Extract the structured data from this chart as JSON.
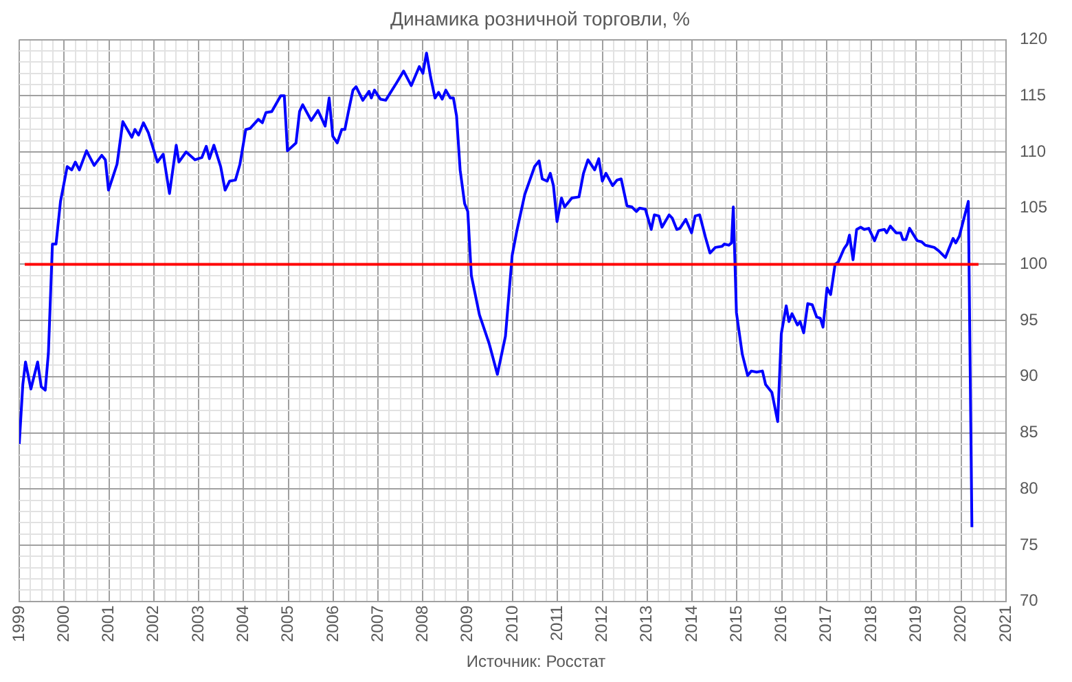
{
  "chart_data": {
    "type": "line",
    "title": "Динамика розничной торговли, %",
    "annotations": [
      "Источник: Росстат"
    ],
    "series": [
      {
        "color": "#0000ff",
        "x": [
          1999.0,
          1999.08,
          1999.14,
          1999.26,
          1999.41,
          1999.49,
          1999.58,
          1999.65,
          1999.74,
          1999.82,
          1999.92,
          2000.07,
          2000.17,
          2000.25,
          2000.34,
          2000.5,
          2000.67,
          2000.84,
          2000.92,
          2000.99,
          2001.18,
          2001.31,
          2001.51,
          2001.58,
          2001.66,
          2001.77,
          2001.88,
          2002.08,
          2002.21,
          2002.35,
          2002.5,
          2002.56,
          2002.72,
          2002.92,
          2003.07,
          2003.17,
          2003.24,
          2003.34,
          2003.49,
          2003.59,
          2003.69,
          2003.82,
          2003.92,
          2004.05,
          2004.15,
          2004.33,
          2004.42,
          2004.5,
          2004.63,
          2004.83,
          2004.91,
          2004.98,
          2005.17,
          2005.25,
          2005.32,
          2005.51,
          2005.66,
          2005.82,
          2005.91,
          2005.99,
          2006.09,
          2006.19,
          2006.26,
          2006.34,
          2006.44,
          2006.51,
          2006.66,
          2006.8,
          2006.85,
          2006.92,
          2007.05,
          2007.17,
          2007.42,
          2007.57,
          2007.74,
          2007.92,
          2008.0,
          2008.08,
          2008.17,
          2008.27,
          2008.35,
          2008.43,
          2008.51,
          2008.61,
          2008.68,
          2008.75,
          2008.83,
          2008.93,
          2009.0,
          2009.08,
          2009.26,
          2009.48,
          2009.66,
          2009.84,
          2009.99,
          2010.09,
          2010.27,
          2010.49,
          2010.59,
          2010.66,
          2010.77,
          2010.84,
          2010.91,
          2010.99,
          2011.09,
          2011.16,
          2011.32,
          2011.48,
          2011.58,
          2011.68,
          2011.83,
          2011.92,
          2012.0,
          2012.08,
          2012.23,
          2012.33,
          2012.42,
          2012.55,
          2012.66,
          2012.76,
          2012.83,
          2012.96,
          2013.09,
          2013.16,
          2013.26,
          2013.33,
          2013.49,
          2013.56,
          2013.66,
          2013.73,
          2013.86,
          2013.99,
          2014.07,
          2014.17,
          2014.3,
          2014.4,
          2014.52,
          2014.67,
          2014.72,
          2014.82,
          2014.88,
          2014.92,
          2014.99,
          2015.12,
          2015.24,
          2015.32,
          2015.44,
          2015.57,
          2015.64,
          2015.78,
          2015.91,
          2015.99,
          2016.1,
          2016.16,
          2016.23,
          2016.35,
          2016.41,
          2016.49,
          2016.58,
          2016.68,
          2016.78,
          2016.86,
          2016.92,
          2017.01,
          2017.09,
          2017.19,
          2017.26,
          2017.39,
          2017.46,
          2017.51,
          2017.59,
          2017.67,
          2017.76,
          2017.84,
          2017.94,
          2018.07,
          2018.16,
          2018.29,
          2018.34,
          2018.42,
          2018.55,
          2018.65,
          2018.7,
          2018.77,
          2018.85,
          2019.02,
          2019.12,
          2019.2,
          2019.3,
          2019.4,
          2019.5,
          2019.65,
          2019.82,
          2019.88,
          2019.96,
          2020.16,
          2020.24
        ],
        "values": [
          84.0,
          89.3,
          91.3,
          88.9,
          91.3,
          89.1,
          88.8,
          92.1,
          101.8,
          101.8,
          105.6,
          108.7,
          108.4,
          109.1,
          108.4,
          110.1,
          108.8,
          109.7,
          109.3,
          106.6,
          108.9,
          112.7,
          111.3,
          112.0,
          111.5,
          112.6,
          111.7,
          109.1,
          109.8,
          106.3,
          110.6,
          109.1,
          110.0,
          109.3,
          109.5,
          110.5,
          109.4,
          110.6,
          108.7,
          106.6,
          107.4,
          107.5,
          108.9,
          112.0,
          112.1,
          112.9,
          112.6,
          113.5,
          113.6,
          115.0,
          115.0,
          110.1,
          110.8,
          113.6,
          114.2,
          112.8,
          113.7,
          112.3,
          114.8,
          111.4,
          110.8,
          112.0,
          112.0,
          113.6,
          115.5,
          115.8,
          114.6,
          115.4,
          114.8,
          115.5,
          114.7,
          114.6,
          116.2,
          117.2,
          115.9,
          117.6,
          117.0,
          118.8,
          116.7,
          114.8,
          115.3,
          114.7,
          115.5,
          114.8,
          114.8,
          113.2,
          108.4,
          105.4,
          104.7,
          99.0,
          95.5,
          92.9,
          90.2,
          93.6,
          100.8,
          102.9,
          106.2,
          108.7,
          109.2,
          107.6,
          107.4,
          108.1,
          107.0,
          103.8,
          105.9,
          105.1,
          105.9,
          106.0,
          108.1,
          109.3,
          108.4,
          109.4,
          107.4,
          108.1,
          107.0,
          107.5,
          107.6,
          105.2,
          105.1,
          104.7,
          105.0,
          104.9,
          103.1,
          104.4,
          104.3,
          103.3,
          104.4,
          104.1,
          103.1,
          103.2,
          104.0,
          102.8,
          104.3,
          104.4,
          102.4,
          101.0,
          101.5,
          101.6,
          101.8,
          101.7,
          101.9,
          105.1,
          95.7,
          92.0,
          90.1,
          90.5,
          90.4,
          90.5,
          89.3,
          88.6,
          86.0,
          93.8,
          96.3,
          94.9,
          95.6,
          94.6,
          94.9,
          93.9,
          96.5,
          96.4,
          95.3,
          95.2,
          94.4,
          97.9,
          97.3,
          100.0,
          100.2,
          101.4,
          101.8,
          102.6,
          100.4,
          103.1,
          103.3,
          103.1,
          103.2,
          102.1,
          103.0,
          103.1,
          102.8,
          103.4,
          102.8,
          102.8,
          102.2,
          102.2,
          103.2,
          102.1,
          102.0,
          101.7,
          101.6,
          101.5,
          101.2,
          100.6,
          102.3,
          101.9,
          102.5,
          105.6,
          76.6
        ]
      }
    ],
    "xlim": [
      1999,
      2021
    ],
    "xticks": [
      1999,
      {
        "value": 1999.25,
        "label": null
      },
      {
        "value": 1999.5,
        "label": null
      },
      {
        "value": 1999.75,
        "label": null
      },
      2000,
      {
        "value": 2000.25,
        "label": null
      },
      {
        "value": 2000.5,
        "label": null
      },
      {
        "value": 2000.75,
        "label": null
      },
      2001,
      {
        "value": 2001.25,
        "label": null
      },
      {
        "value": 2001.5,
        "label": null
      },
      {
        "value": 2001.75,
        "label": null
      },
      2002,
      {
        "value": 2002.25,
        "label": null
      },
      {
        "value": 2002.5,
        "label": null
      },
      {
        "value": 2002.75,
        "label": null
      },
      2003,
      {
        "value": 2003.25,
        "label": null
      },
      {
        "value": 2003.5,
        "label": null
      },
      {
        "value": 2003.75,
        "label": null
      },
      2004,
      {
        "value": 2004.25,
        "label": null
      },
      {
        "value": 2004.5,
        "label": null
      },
      {
        "value": 2004.75,
        "label": null
      },
      2005,
      {
        "value": 2005.25,
        "label": null
      },
      {
        "value": 2005.5,
        "label": null
      },
      {
        "value": 2005.75,
        "label": null
      },
      2006,
      {
        "value": 2006.25,
        "label": null
      },
      {
        "value": 2006.5,
        "label": null
      },
      {
        "value": 2006.75,
        "label": null
      },
      2007,
      {
        "value": 2007.25,
        "label": null
      },
      {
        "value": 2007.5,
        "label": null
      },
      {
        "value": 2007.75,
        "label": null
      },
      2008,
      {
        "value": 2008.25,
        "label": null
      },
      {
        "value": 2008.5,
        "label": null
      },
      {
        "value": 2008.75,
        "label": null
      },
      2009,
      {
        "value": 2009.25,
        "label": null
      },
      {
        "value": 2009.5,
        "label": null
      },
      {
        "value": 2009.75,
        "label": null
      },
      2010,
      {
        "value": 2010.25,
        "label": null
      },
      {
        "value": 2010.5,
        "label": null
      },
      {
        "value": 2010.75,
        "label": null
      },
      2011,
      {
        "value": 2011.25,
        "label": null
      },
      {
        "value": 2011.5,
        "label": null
      },
      {
        "value": 2011.75,
        "label": null
      },
      2012,
      {
        "value": 2012.25,
        "label": null
      },
      {
        "value": 2012.5,
        "label": null
      },
      {
        "value": 2012.75,
        "label": null
      },
      2013,
      {
        "value": 2013.25,
        "label": null
      },
      {
        "value": 2013.5,
        "label": null
      },
      {
        "value": 2013.75,
        "label": null
      },
      2014,
      {
        "value": 2014.25,
        "label": null
      },
      {
        "value": 2014.5,
        "label": null
      },
      {
        "value": 2014.75,
        "label": null
      },
      2015,
      {
        "value": 2015.25,
        "label": null
      },
      {
        "value": 2015.5,
        "label": null
      },
      {
        "value": 2015.75,
        "label": null
      },
      2016,
      {
        "value": 2016.25,
        "label": null
      },
      {
        "value": 2016.5,
        "label": null
      },
      {
        "value": 2016.75,
        "label": null
      },
      2017,
      {
        "value": 2017.25,
        "label": null
      },
      {
        "value": 2017.5,
        "label": null
      },
      {
        "value": 2017.75,
        "label": null
      },
      2018,
      {
        "value": 2018.25,
        "label": null
      },
      {
        "value": 2018.5,
        "label": null
      },
      {
        "value": 2018.75,
        "label": null
      },
      2019,
      {
        "value": 2019.25,
        "label": null
      },
      {
        "value": 2019.5,
        "label": null
      },
      {
        "value": 2019.75,
        "label": null
      },
      2020,
      {
        "value": 2020.25,
        "label": null
      },
      {
        "value": 2020.5,
        "label": null
      },
      {
        "value": 2020.75,
        "label": null
      },
      2021
    ],
    "ylim": [
      70,
      120
    ],
    "yticks": [
      70,
      {
        "value": 71,
        "label": null
      },
      {
        "value": 72,
        "label": null
      },
      {
        "value": 73,
        "label": null
      },
      {
        "value": 74,
        "label": null
      },
      75,
      {
        "value": 76,
        "label": null
      },
      {
        "value": 77,
        "label": null
      },
      {
        "value": 78,
        "label": null
      },
      {
        "value": 79,
        "label": null
      },
      80,
      {
        "value": 81,
        "label": null
      },
      {
        "value": 82,
        "label": null
      },
      {
        "value": 83,
        "label": null
      },
      {
        "value": 84,
        "label": null
      },
      85,
      {
        "value": 86,
        "label": null
      },
      {
        "value": 87,
        "label": null
      },
      {
        "value": 88,
        "label": null
      },
      {
        "value": 89,
        "label": null
      },
      90,
      {
        "value": 91,
        "label": null
      },
      {
        "value": 92,
        "label": null
      },
      {
        "value": 93,
        "label": null
      },
      {
        "value": 94,
        "label": null
      },
      95,
      {
        "value": 96,
        "label": null
      },
      {
        "value": 97,
        "label": null
      },
      {
        "value": 98,
        "label": null
      },
      {
        "value": 99,
        "label": null
      },
      100,
      {
        "value": 101,
        "label": null
      },
      {
        "value": 102,
        "label": null
      },
      {
        "value": 103,
        "label": null
      },
      {
        "value": 104,
        "label": null
      },
      105,
      {
        "value": 106,
        "label": null
      },
      {
        "value": 107,
        "label": null
      },
      {
        "value": 108,
        "label": null
      },
      {
        "value": 109,
        "label": null
      },
      110,
      {
        "value": 111,
        "label": null
      },
      {
        "value": 112,
        "label": null
      },
      {
        "value": 113,
        "label": null
      },
      {
        "value": 114,
        "label": null
      },
      115,
      {
        "value": 116,
        "label": null
      },
      {
        "value": 117,
        "label": null
      },
      {
        "value": 118,
        "label": null
      },
      {
        "value": 119,
        "label": null
      },
      120
    ],
    "ref_lines": [
      {
        "axis": "y",
        "value": 100,
        "color": "#ff0000"
      }
    ],
    "grid": true,
    "legend": false,
    "marker": "none",
    "line_style": "solid"
  }
}
